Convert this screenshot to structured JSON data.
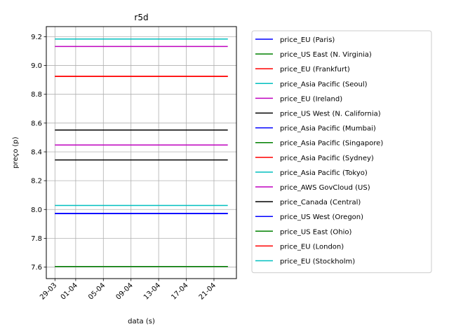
{
  "chart_data": {
    "type": "line",
    "title": "r5d",
    "xlabel": "data (s)",
    "ylabel": "preço (p)",
    "x_ticks": [
      "29-03",
      "01-04",
      "05-04",
      "09-04",
      "13-04",
      "17-04",
      "21-04"
    ],
    "x_start": "2019-03-29",
    "x_end": "2019-04-23",
    "ylim": [
      7.52,
      9.27
    ],
    "y_ticks": [
      7.6,
      7.8,
      8.0,
      8.2,
      8.4,
      8.6,
      8.8,
      9.0,
      9.2
    ],
    "y_tick_labels": [
      "7.6",
      "7.8",
      "8.0",
      "8.2",
      "8.4",
      "8.6",
      "8.8",
      "9.0",
      "9.2"
    ],
    "grid": true,
    "legend_position": "outside-right",
    "series": [
      {
        "name": "price_EU (Paris)",
        "color": "#0000ff",
        "value": 7.972
      },
      {
        "name": "price_US East (N. Virginia)",
        "color": "#008000",
        "value": 7.604
      },
      {
        "name": "price_EU (Frankfurt)",
        "color": "#ff0000",
        "value": 8.924
      },
      {
        "name": "price_Asia Pacific (Seoul)",
        "color": "#00bfbf",
        "value": 9.184
      },
      {
        "name": "price_EU (Ireland)",
        "color": "#bf00bf",
        "value": 8.448
      },
      {
        "name": "price_US West (N. California)",
        "color": "#000000",
        "value": 8.552
      },
      {
        "name": "price_Asia Pacific (Mumbai)",
        "color": "#0000ff",
        "value": 7.972
      },
      {
        "name": "price_Asia Pacific (Singapore)",
        "color": "#008000",
        "value": 7.604
      },
      {
        "name": "price_Asia Pacific (Sydney)",
        "color": "#ff0000",
        "value": 8.924
      },
      {
        "name": "price_Asia Pacific (Tokyo)",
        "color": "#00bfbf",
        "value": 9.184
      },
      {
        "name": "price_AWS GovCloud (US)",
        "color": "#bf00bf",
        "value": 9.132
      },
      {
        "name": "price_Canada (Central)",
        "color": "#000000",
        "value": 8.344
      },
      {
        "name": "price_US West (Oregon)",
        "color": "#0000ff",
        "value": 7.972
      },
      {
        "name": "price_US East (Ohio)",
        "color": "#008000",
        "value": 7.604
      },
      {
        "name": "price_EU (London)",
        "color": "#ff0000",
        "value": 8.924
      },
      {
        "name": "price_EU (Stockholm)",
        "color": "#00bfbf",
        "value": 8.028
      }
    ]
  }
}
